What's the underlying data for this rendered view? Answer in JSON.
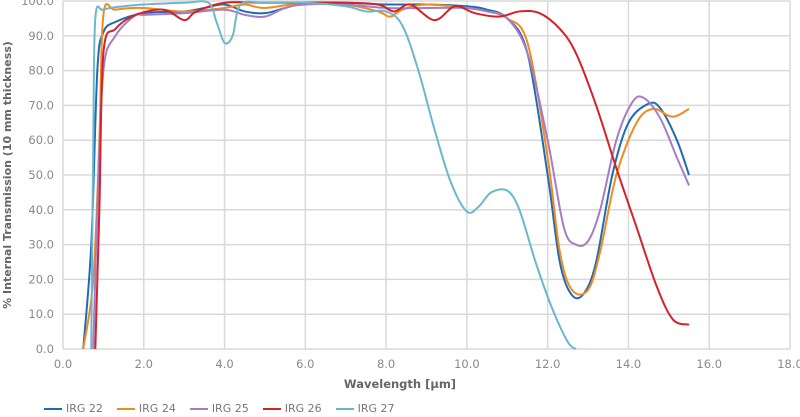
{
  "chart_data": {
    "type": "line",
    "title": "",
    "xlabel": "Wavelength [µm]",
    "ylabel": "% Internal Transmission (10 mm thickness)",
    "xlim": [
      0,
      18
    ],
    "ylim": [
      0,
      100
    ],
    "x_ticks": [
      "0.0",
      "2.0",
      "4.0",
      "6.0",
      "8.0",
      "10.0",
      "12.0",
      "14.0",
      "16.0",
      "18.0"
    ],
    "y_ticks": [
      "0.0",
      "10.0",
      "20.0",
      "30.0",
      "40.0",
      "50.0",
      "60.0",
      "70.0",
      "80.0",
      "90.0",
      "100.0"
    ],
    "grid": true,
    "legend_position": "bottom",
    "series": [
      {
        "name": "IRG 22",
        "color": "#1f6bb5",
        "points": [
          [
            0.5,
            0
          ],
          [
            0.7,
            30
          ],
          [
            0.85,
            80
          ],
          [
            1.0,
            91
          ],
          [
            1.3,
            94
          ],
          [
            2.0,
            96.5
          ],
          [
            3.0,
            97
          ],
          [
            3.5,
            98
          ],
          [
            4.0,
            99
          ],
          [
            4.5,
            97
          ],
          [
            5.0,
            96.5
          ],
          [
            5.5,
            98
          ],
          [
            6.0,
            99.5
          ],
          [
            7.0,
            99.5
          ],
          [
            8.0,
            99
          ],
          [
            9.0,
            99
          ],
          [
            10.0,
            98.5
          ],
          [
            10.5,
            97.5
          ],
          [
            11.0,
            95
          ],
          [
            11.5,
            85
          ],
          [
            12.0,
            50
          ],
          [
            12.3,
            25
          ],
          [
            12.6,
            15.5
          ],
          [
            12.9,
            16
          ],
          [
            13.2,
            25
          ],
          [
            13.6,
            50
          ],
          [
            14.0,
            65
          ],
          [
            14.5,
            70.5
          ],
          [
            14.8,
            69
          ],
          [
            15.2,
            60
          ],
          [
            15.5,
            50
          ]
        ]
      },
      {
        "name": "IRG 24",
        "color": "#f28a1e",
        "points": [
          [
            0.5,
            0
          ],
          [
            0.75,
            20
          ],
          [
            0.9,
            60
          ],
          [
            1.0,
            96
          ],
          [
            1.3,
            97.5
          ],
          [
            2.0,
            98
          ],
          [
            3.0,
            97
          ],
          [
            4.0,
            98
          ],
          [
            4.5,
            99
          ],
          [
            5.0,
            98
          ],
          [
            6.0,
            99.5
          ],
          [
            7.0,
            99
          ],
          [
            7.8,
            97
          ],
          [
            8.1,
            95.5
          ],
          [
            8.4,
            97.5
          ],
          [
            9.0,
            99
          ],
          [
            10.0,
            98
          ],
          [
            10.5,
            97
          ],
          [
            11.0,
            95
          ],
          [
            11.5,
            88
          ],
          [
            12.0,
            55
          ],
          [
            12.3,
            28
          ],
          [
            12.6,
            17
          ],
          [
            13.0,
            17
          ],
          [
            13.3,
            28
          ],
          [
            13.7,
            50
          ],
          [
            14.2,
            65
          ],
          [
            14.6,
            69
          ],
          [
            15.0,
            67
          ],
          [
            15.2,
            67
          ],
          [
            15.5,
            69
          ]
        ]
      },
      {
        "name": "IRG 25",
        "color": "#a87cc3",
        "points": [
          [
            0.75,
            0
          ],
          [
            0.85,
            40
          ],
          [
            1.0,
            80
          ],
          [
            1.3,
            90
          ],
          [
            1.8,
            96
          ],
          [
            2.0,
            96
          ],
          [
            3.0,
            96.5
          ],
          [
            4.0,
            97.5
          ],
          [
            4.5,
            96
          ],
          [
            5.0,
            95.5
          ],
          [
            5.5,
            98
          ],
          [
            6.0,
            99
          ],
          [
            7.0,
            99
          ],
          [
            8.0,
            98
          ],
          [
            9.0,
            98
          ],
          [
            10.0,
            98
          ],
          [
            10.5,
            97
          ],
          [
            11.0,
            95
          ],
          [
            11.5,
            85
          ],
          [
            12.0,
            60
          ],
          [
            12.4,
            35
          ],
          [
            12.7,
            30
          ],
          [
            13.0,
            31
          ],
          [
            13.3,
            40
          ],
          [
            13.7,
            60
          ],
          [
            14.1,
            71
          ],
          [
            14.4,
            72
          ],
          [
            14.8,
            66
          ],
          [
            15.2,
            55
          ],
          [
            15.5,
            47
          ]
        ]
      },
      {
        "name": "IRG 26",
        "color": "#d2232a",
        "points": [
          [
            0.8,
            0
          ],
          [
            0.9,
            40
          ],
          [
            1.0,
            85
          ],
          [
            1.3,
            92
          ],
          [
            1.8,
            96
          ],
          [
            2.5,
            97.5
          ],
          [
            3.0,
            94.5
          ],
          [
            3.3,
            97
          ],
          [
            4.0,
            99.5
          ],
          [
            5.0,
            99.5
          ],
          [
            6.0,
            99.5
          ],
          [
            7.0,
            99.5
          ],
          [
            7.8,
            99
          ],
          [
            8.2,
            97
          ],
          [
            8.6,
            99
          ],
          [
            9.2,
            94.5
          ],
          [
            9.7,
            98.5
          ],
          [
            10.2,
            96.5
          ],
          [
            10.8,
            95.5
          ],
          [
            11.3,
            97
          ],
          [
            11.8,
            96.5
          ],
          [
            12.3,
            92
          ],
          [
            12.7,
            85
          ],
          [
            13.2,
            70
          ],
          [
            13.7,
            52
          ],
          [
            14.2,
            35
          ],
          [
            14.7,
            18
          ],
          [
            15.1,
            8.5
          ],
          [
            15.5,
            7
          ]
        ]
      },
      {
        "name": "IRG 27",
        "color": "#6bb8cd",
        "points": [
          [
            0.7,
            0
          ],
          [
            0.75,
            60
          ],
          [
            0.8,
            95
          ],
          [
            1.0,
            97.5
          ],
          [
            1.5,
            98.5
          ],
          [
            2.0,
            99
          ],
          [
            3.0,
            99.5
          ],
          [
            3.6,
            99.5
          ],
          [
            3.8,
            94
          ],
          [
            4.0,
            88
          ],
          [
            4.2,
            90
          ],
          [
            4.4,
            99
          ],
          [
            5.0,
            99.5
          ],
          [
            6.0,
            99.5
          ],
          [
            7.0,
            98.5
          ],
          [
            7.5,
            97
          ],
          [
            8.0,
            97
          ],
          [
            8.4,
            93
          ],
          [
            8.8,
            80
          ],
          [
            9.2,
            63
          ],
          [
            9.6,
            48
          ],
          [
            10.0,
            39.5
          ],
          [
            10.3,
            41
          ],
          [
            10.6,
            45
          ],
          [
            11.0,
            45.5
          ],
          [
            11.3,
            40
          ],
          [
            11.7,
            25
          ],
          [
            12.1,
            12
          ],
          [
            12.5,
            2
          ],
          [
            12.7,
            0
          ]
        ]
      }
    ]
  }
}
